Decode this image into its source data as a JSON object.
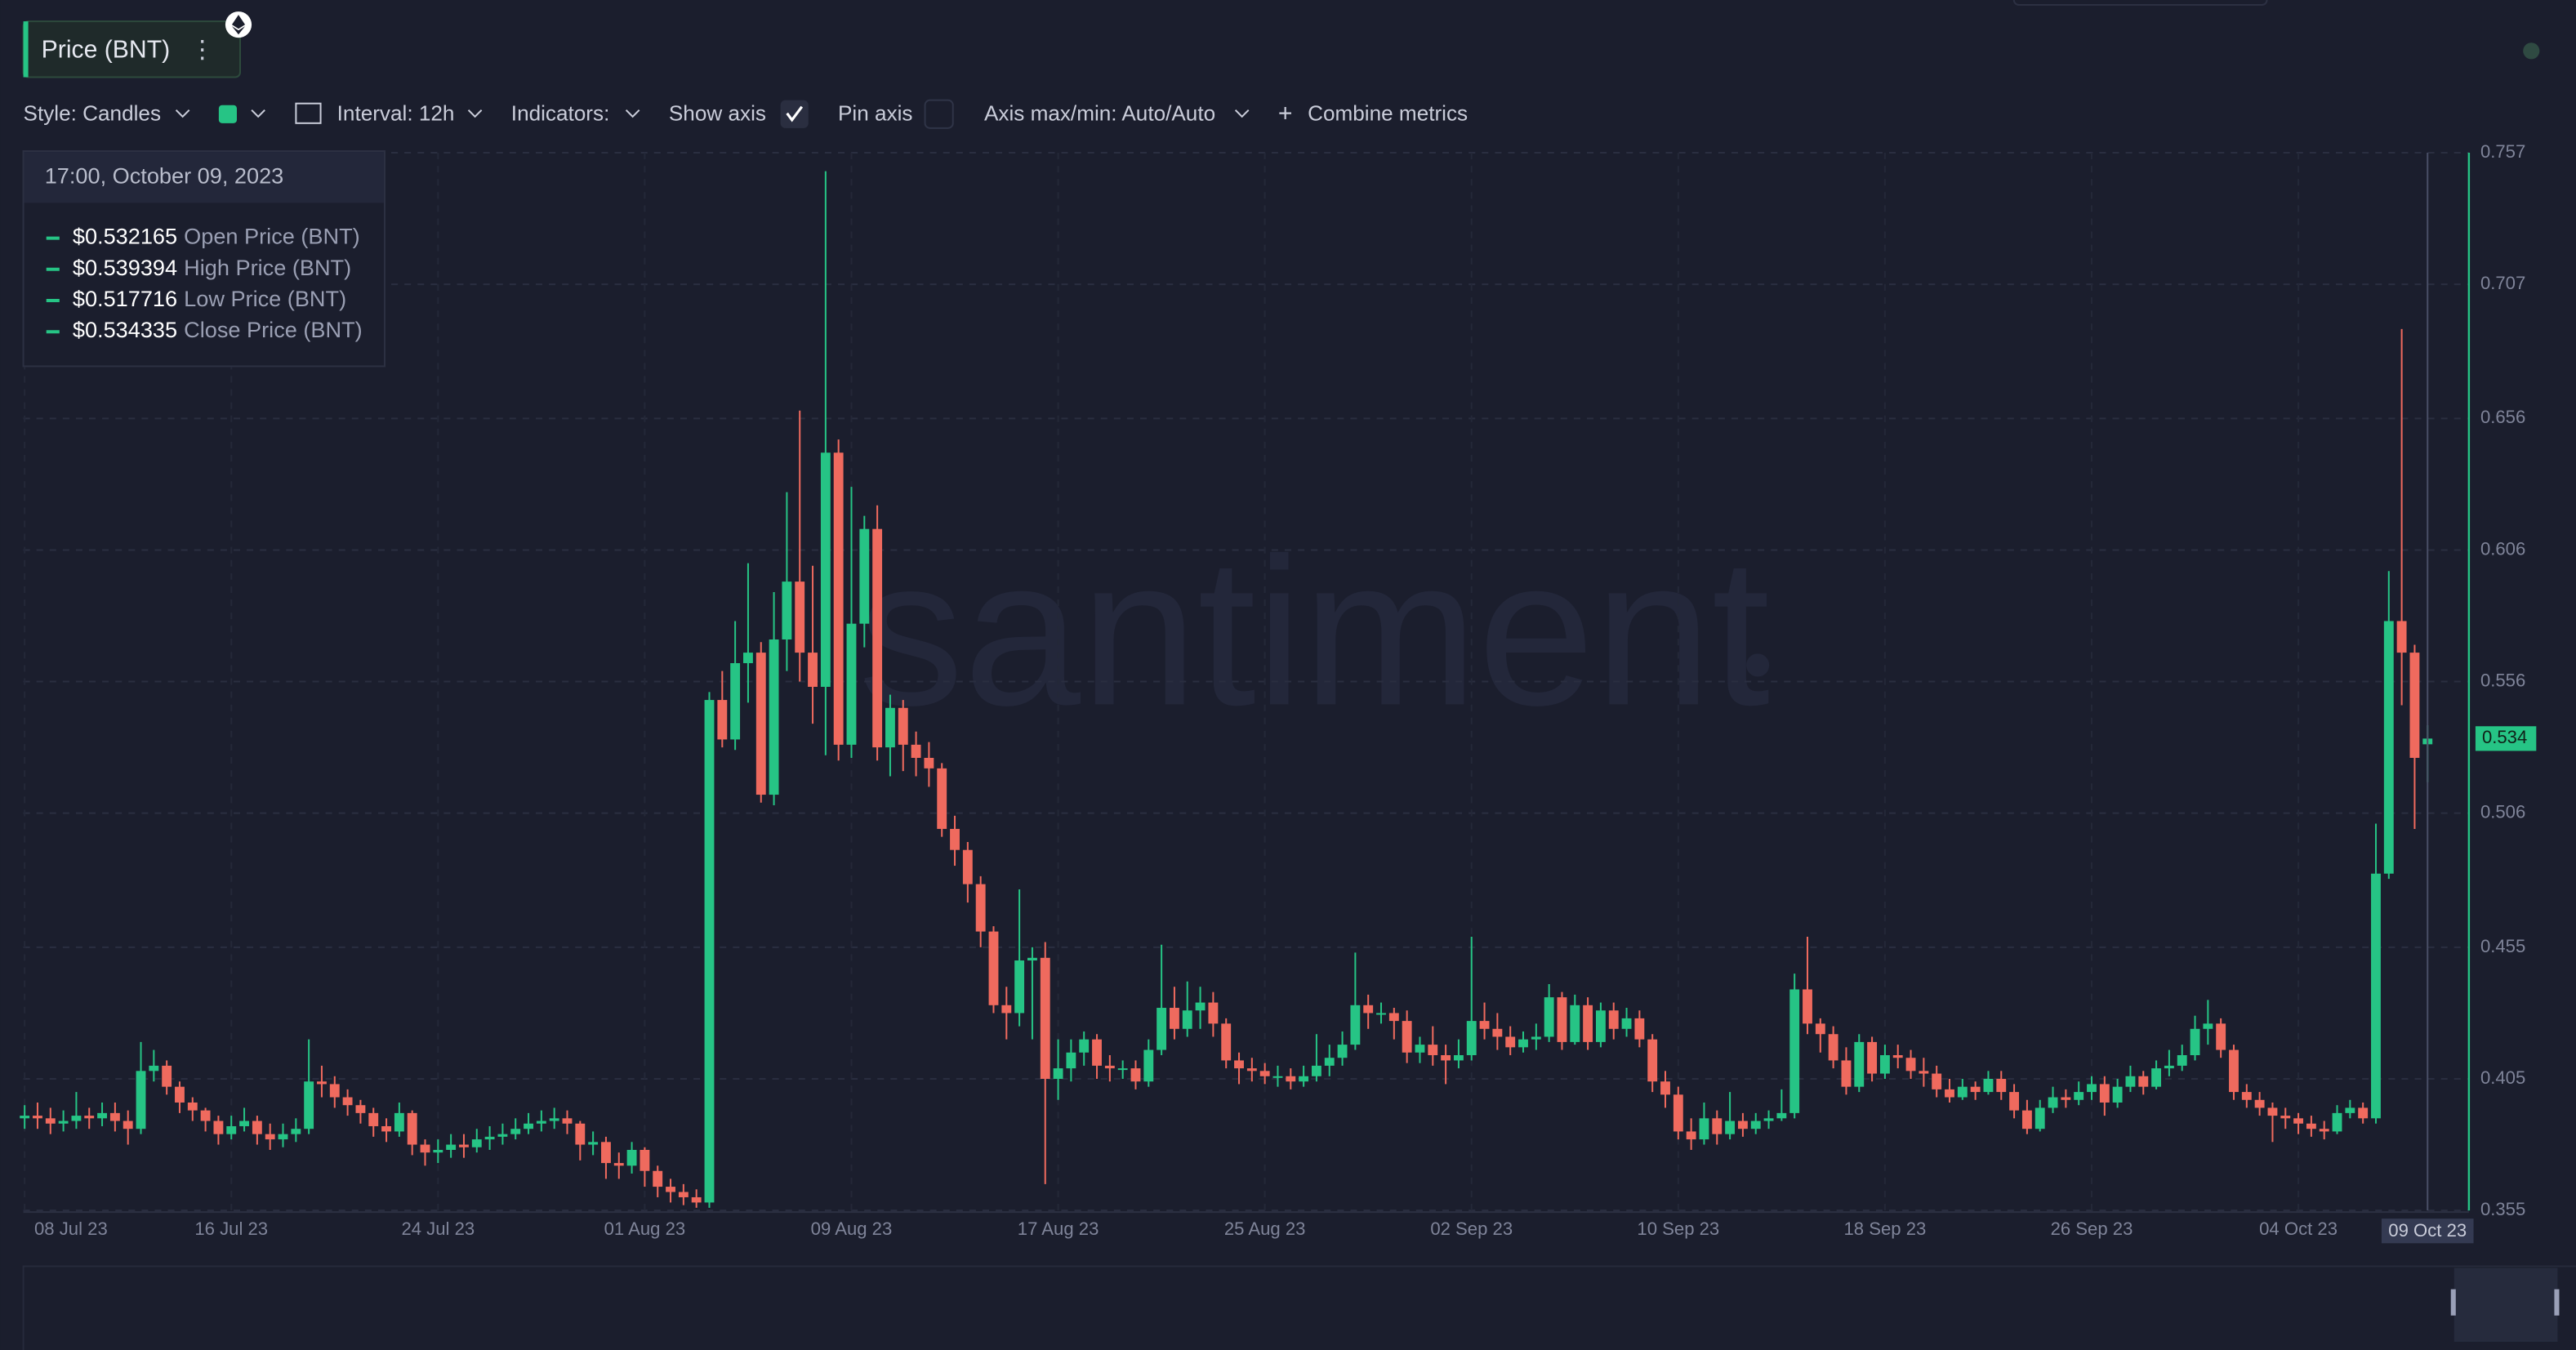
{
  "toolbar": {
    "metric": "Price (BNT)",
    "style": "Style: Candles",
    "interval": "Interval: 12h",
    "indicators": "Indicators:",
    "show_axis": "Show axis",
    "pin_axis": "Pin axis",
    "axis_minmax": "Axis max/min: Auto/Auto",
    "combine": "Combine metrics"
  },
  "tooltip": {
    "date": "17:00, October 09, 2023",
    "items": [
      {
        "value": "$0.532165",
        "name": "Open Price (BNT)"
      },
      {
        "value": "$0.539394",
        "name": "High Price (BNT)"
      },
      {
        "value": "$0.517716",
        "name": "Low Price (BNT)"
      },
      {
        "value": "$0.534335",
        "name": "Close Price (BNT)"
      }
    ]
  },
  "chart_data": {
    "type": "candlestick",
    "watermark": "santiment",
    "open": [
      0.39,
      0.391,
      0.39,
      0.388,
      0.389,
      0.391,
      0.39,
      0.392,
      0.389,
      0.386,
      0.408,
      0.41,
      0.402,
      0.396,
      0.393,
      0.389,
      0.384,
      0.387,
      0.389,
      0.384,
      0.382,
      0.384,
      0.386,
      0.404,
      0.403,
      0.398,
      0.395,
      0.392,
      0.387,
      0.385,
      0.392,
      0.38,
      0.377,
      0.378,
      0.38,
      0.379,
      0.382,
      0.383,
      0.384,
      0.386,
      0.388,
      0.389,
      0.39,
      0.388,
      0.38,
      0.381,
      0.373,
      0.372,
      0.378,
      0.37,
      0.364,
      0.362,
      0.36,
      0.358,
      0.549,
      0.534,
      0.563,
      0.567,
      0.513,
      0.572,
      0.594,
      0.567,
      0.554,
      0.643,
      0.532,
      0.578,
      0.614,
      0.531,
      0.546,
      0.532,
      0.527,
      0.523,
      0.5,
      0.492,
      0.479,
      0.461,
      0.433,
      0.43,
      0.45,
      0.451,
      0.405,
      0.409,
      0.415,
      0.42,
      0.41,
      0.409,
      0.409,
      0.404,
      0.416,
      0.432,
      0.424,
      0.431,
      0.434,
      0.426,
      0.412,
      0.409,
      0.408,
      0.406,
      0.406,
      0.404,
      0.406,
      0.41,
      0.413,
      0.418,
      0.433,
      0.43,
      0.43,
      0.427,
      0.415,
      0.418,
      0.414,
      0.412,
      0.414,
      0.427,
      0.424,
      0.421,
      0.417,
      0.42,
      0.421,
      0.436,
      0.419,
      0.433,
      0.419,
      0.431,
      0.424,
      0.428,
      0.42,
      0.404,
      0.399,
      0.385,
      0.382,
      0.39,
      0.384,
      0.389,
      0.386,
      0.389,
      0.39,
      0.392,
      0.439,
      0.426,
      0.422,
      0.412,
      0.402,
      0.419,
      0.407,
      0.414,
      0.413,
      0.408,
      0.407,
      0.401,
      0.398,
      0.402,
      0.4,
      0.405,
      0.4,
      0.393,
      0.386,
      0.394,
      0.398,
      0.397,
      0.4,
      0.403,
      0.396,
      0.402,
      0.406,
      0.402,
      0.409,
      0.41,
      0.414,
      0.424,
      0.426,
      0.416,
      0.4,
      0.397,
      0.394,
      0.391,
      0.39,
      0.388,
      0.386,
      0.385,
      0.392,
      0.394,
      0.39,
      0.483,
      0.579,
      0.567,
      0.532165
    ],
    "high": [
      0.395,
      0.396,
      0.394,
      0.393,
      0.4,
      0.394,
      0.396,
      0.396,
      0.393,
      0.419,
      0.416,
      0.412,
      0.404,
      0.398,
      0.394,
      0.391,
      0.391,
      0.394,
      0.391,
      0.388,
      0.388,
      0.39,
      0.42,
      0.41,
      0.406,
      0.401,
      0.397,
      0.394,
      0.39,
      0.396,
      0.393,
      0.382,
      0.382,
      0.384,
      0.384,
      0.386,
      0.387,
      0.388,
      0.39,
      0.392,
      0.393,
      0.394,
      0.393,
      0.389,
      0.385,
      0.383,
      0.377,
      0.381,
      0.379,
      0.372,
      0.367,
      0.365,
      0.363,
      0.552,
      0.56,
      0.579,
      0.601,
      0.571,
      0.59,
      0.628,
      0.659,
      0.6,
      0.75,
      0.648,
      0.63,
      0.619,
      0.623,
      0.551,
      0.549,
      0.537,
      0.533,
      0.525,
      0.505,
      0.495,
      0.482,
      0.463,
      0.44,
      0.477,
      0.455,
      0.457,
      0.42,
      0.42,
      0.423,
      0.422,
      0.414,
      0.412,
      0.412,
      0.42,
      0.456,
      0.44,
      0.442,
      0.44,
      0.438,
      0.428,
      0.415,
      0.413,
      0.411,
      0.41,
      0.409,
      0.41,
      0.422,
      0.418,
      0.423,
      0.453,
      0.437,
      0.434,
      0.432,
      0.431,
      0.421,
      0.425,
      0.418,
      0.42,
      0.459,
      0.434,
      0.43,
      0.425,
      0.423,
      0.426,
      0.441,
      0.438,
      0.437,
      0.436,
      0.434,
      0.434,
      0.432,
      0.431,
      0.422,
      0.408,
      0.402,
      0.39,
      0.396,
      0.393,
      0.4,
      0.392,
      0.392,
      0.393,
      0.401,
      0.445,
      0.459,
      0.428,
      0.425,
      0.417,
      0.422,
      0.421,
      0.418,
      0.418,
      0.416,
      0.413,
      0.41,
      0.405,
      0.405,
      0.404,
      0.408,
      0.408,
      0.403,
      0.397,
      0.397,
      0.402,
      0.401,
      0.404,
      0.406,
      0.406,
      0.405,
      0.41,
      0.408,
      0.412,
      0.416,
      0.418,
      0.429,
      0.435,
      0.428,
      0.418,
      0.403,
      0.4,
      0.396,
      0.394,
      0.392,
      0.391,
      0.389,
      0.395,
      0.397,
      0.396,
      0.502,
      0.598,
      0.69,
      0.57,
      0.539394
    ],
    "low": [
      0.386,
      0.386,
      0.384,
      0.385,
      0.386,
      0.386,
      0.387,
      0.385,
      0.38,
      0.384,
      0.404,
      0.399,
      0.392,
      0.389,
      0.385,
      0.38,
      0.382,
      0.385,
      0.38,
      0.378,
      0.379,
      0.381,
      0.384,
      0.398,
      0.394,
      0.391,
      0.388,
      0.383,
      0.381,
      0.383,
      0.376,
      0.372,
      0.373,
      0.375,
      0.375,
      0.377,
      0.378,
      0.38,
      0.382,
      0.384,
      0.385,
      0.386,
      0.384,
      0.374,
      0.376,
      0.367,
      0.367,
      0.369,
      0.364,
      0.36,
      0.358,
      0.357,
      0.356,
      0.356,
      0.531,
      0.53,
      0.548,
      0.51,
      0.509,
      0.56,
      0.556,
      0.54,
      0.528,
      0.526,
      0.527,
      0.569,
      0.526,
      0.52,
      0.522,
      0.52,
      0.516,
      0.497,
      0.486,
      0.472,
      0.455,
      0.43,
      0.42,
      0.425,
      0.42,
      0.365,
      0.397,
      0.404,
      0.41,
      0.405,
      0.404,
      0.405,
      0.401,
      0.402,
      0.414,
      0.42,
      0.421,
      0.424,
      0.421,
      0.409,
      0.403,
      0.404,
      0.403,
      0.402,
      0.401,
      0.402,
      0.404,
      0.406,
      0.41,
      0.416,
      0.424,
      0.426,
      0.42,
      0.411,
      0.411,
      0.41,
      0.403,
      0.409,
      0.412,
      0.42,
      0.416,
      0.414,
      0.415,
      0.416,
      0.419,
      0.416,
      0.418,
      0.416,
      0.417,
      0.42,
      0.421,
      0.417,
      0.4,
      0.394,
      0.382,
      0.378,
      0.38,
      0.38,
      0.382,
      0.383,
      0.384,
      0.386,
      0.389,
      0.39,
      0.422,
      0.415,
      0.409,
      0.399,
      0.4,
      0.404,
      0.405,
      0.409,
      0.405,
      0.402,
      0.398,
      0.396,
      0.397,
      0.397,
      0.399,
      0.397,
      0.39,
      0.384,
      0.385,
      0.392,
      0.394,
      0.395,
      0.397,
      0.391,
      0.394,
      0.4,
      0.399,
      0.401,
      0.406,
      0.408,
      0.412,
      0.418,
      0.413,
      0.397,
      0.394,
      0.391,
      0.381,
      0.386,
      0.384,
      0.383,
      0.382,
      0.384,
      0.39,
      0.388,
      0.388,
      0.481,
      0.547,
      0.5,
      0.517716
    ],
    "close": [
      0.391,
      0.39,
      0.388,
      0.389,
      0.391,
      0.39,
      0.392,
      0.389,
      0.386,
      0.408,
      0.41,
      0.402,
      0.396,
      0.393,
      0.389,
      0.384,
      0.387,
      0.389,
      0.384,
      0.382,
      0.384,
      0.386,
      0.404,
      0.403,
      0.398,
      0.395,
      0.392,
      0.387,
      0.385,
      0.392,
      0.38,
      0.377,
      0.378,
      0.38,
      0.379,
      0.382,
      0.383,
      0.384,
      0.386,
      0.388,
      0.389,
      0.39,
      0.388,
      0.38,
      0.381,
      0.373,
      0.372,
      0.378,
      0.37,
      0.364,
      0.362,
      0.36,
      0.358,
      0.549,
      0.534,
      0.563,
      0.567,
      0.513,
      0.572,
      0.594,
      0.567,
      0.554,
      0.643,
      0.532,
      0.578,
      0.614,
      0.531,
      0.546,
      0.532,
      0.527,
      0.523,
      0.5,
      0.492,
      0.479,
      0.461,
      0.433,
      0.43,
      0.45,
      0.451,
      0.405,
      0.409,
      0.415,
      0.42,
      0.41,
      0.409,
      0.409,
      0.404,
      0.416,
      0.432,
      0.424,
      0.431,
      0.434,
      0.426,
      0.412,
      0.409,
      0.408,
      0.406,
      0.406,
      0.404,
      0.406,
      0.41,
      0.413,
      0.418,
      0.433,
      0.43,
      0.43,
      0.427,
      0.415,
      0.418,
      0.414,
      0.412,
      0.414,
      0.427,
      0.424,
      0.421,
      0.417,
      0.42,
      0.421,
      0.436,
      0.419,
      0.433,
      0.419,
      0.431,
      0.424,
      0.428,
      0.42,
      0.404,
      0.399,
      0.385,
      0.382,
      0.39,
      0.384,
      0.389,
      0.386,
      0.389,
      0.39,
      0.392,
      0.439,
      0.426,
      0.422,
      0.412,
      0.402,
      0.419,
      0.407,
      0.414,
      0.413,
      0.408,
      0.407,
      0.401,
      0.398,
      0.402,
      0.4,
      0.405,
      0.4,
      0.393,
      0.386,
      0.394,
      0.398,
      0.397,
      0.4,
      0.403,
      0.396,
      0.402,
      0.406,
      0.402,
      0.409,
      0.41,
      0.414,
      0.424,
      0.426,
      0.416,
      0.4,
      0.397,
      0.394,
      0.391,
      0.39,
      0.388,
      0.386,
      0.385,
      0.392,
      0.394,
      0.39,
      0.483,
      0.579,
      0.567,
      0.527,
      0.534335
    ],
    "xlim": [
      -0.1,
      189.2
    ],
    "xticks": [
      {
        "value": 0,
        "label": "08 Jul 23"
      },
      {
        "value": 16,
        "label": "16 Jul 23"
      },
      {
        "value": 32,
        "label": "24 Jul 23"
      },
      {
        "value": 48,
        "label": "01 Aug 23"
      },
      {
        "value": 64,
        "label": "09 Aug 23"
      },
      {
        "value": 80,
        "label": "17 Aug 23"
      },
      {
        "value": 96,
        "label": "25 Aug 23"
      },
      {
        "value": 112,
        "label": "02 Sep 23"
      },
      {
        "value": 128,
        "label": "10 Sep 23"
      },
      {
        "value": 144,
        "label": "18 Sep 23"
      },
      {
        "value": 160,
        "label": "26 Sep 23"
      },
      {
        "value": 176,
        "label": "04 Oct 23"
      }
    ],
    "crosshair": {
      "value": 186,
      "label": "09 Oct 23"
    },
    "ylim": [
      0.355,
      0.757
    ],
    "yticks": [
      0.355,
      0.405,
      0.455,
      0.506,
      0.556,
      0.606,
      0.656,
      0.707,
      0.757
    ],
    "last_price_label": "0.534",
    "grid": true,
    "colors": {
      "up": "#26c485",
      "down": "#ef6a5e",
      "axis": "#26c485"
    }
  }
}
